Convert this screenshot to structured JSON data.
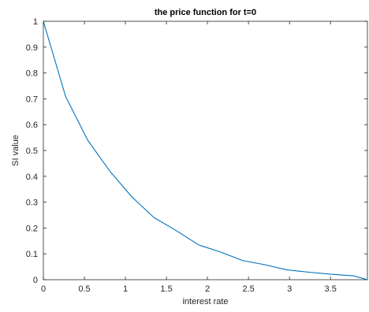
{
  "chart_data": {
    "type": "line",
    "title": "the price function for t=0",
    "xlabel": "interest rate",
    "ylabel": "SI value",
    "xlim": [
      0,
      3.95
    ],
    "ylim": [
      0,
      1
    ],
    "grid": false,
    "xticks": [
      "0",
      "0.5",
      "1",
      "1.5",
      "2",
      "2.5",
      "3",
      "3.5"
    ],
    "xtick_values": [
      0,
      0.5,
      1,
      1.5,
      2,
      2.5,
      3,
      3.5
    ],
    "yticks": [
      "0",
      "0.1",
      "0.2",
      "0.3",
      "0.4",
      "0.5",
      "0.6",
      "0.7",
      "0.8",
      "0.9",
      "1"
    ],
    "ytick_values": [
      0,
      0.1,
      0.2,
      0.3,
      0.4,
      0.5,
      0.6,
      0.7,
      0.8,
      0.9,
      1
    ],
    "colors": {
      "line": "#0072bd",
      "axis": "#262626"
    },
    "series": [
      {
        "x": [
          0,
          0.27,
          0.54,
          0.81,
          1.08,
          1.35,
          1.62,
          1.89,
          2.16,
          2.43,
          2.7,
          2.97,
          3.24,
          3.51,
          3.78,
          3.95
        ],
        "values": [
          1.0,
          0.71,
          0.54,
          0.42,
          0.32,
          0.24,
          0.19,
          0.135,
          0.107,
          0.074,
          0.058,
          0.038,
          0.029,
          0.021,
          0.015,
          0.0
        ]
      }
    ]
  }
}
